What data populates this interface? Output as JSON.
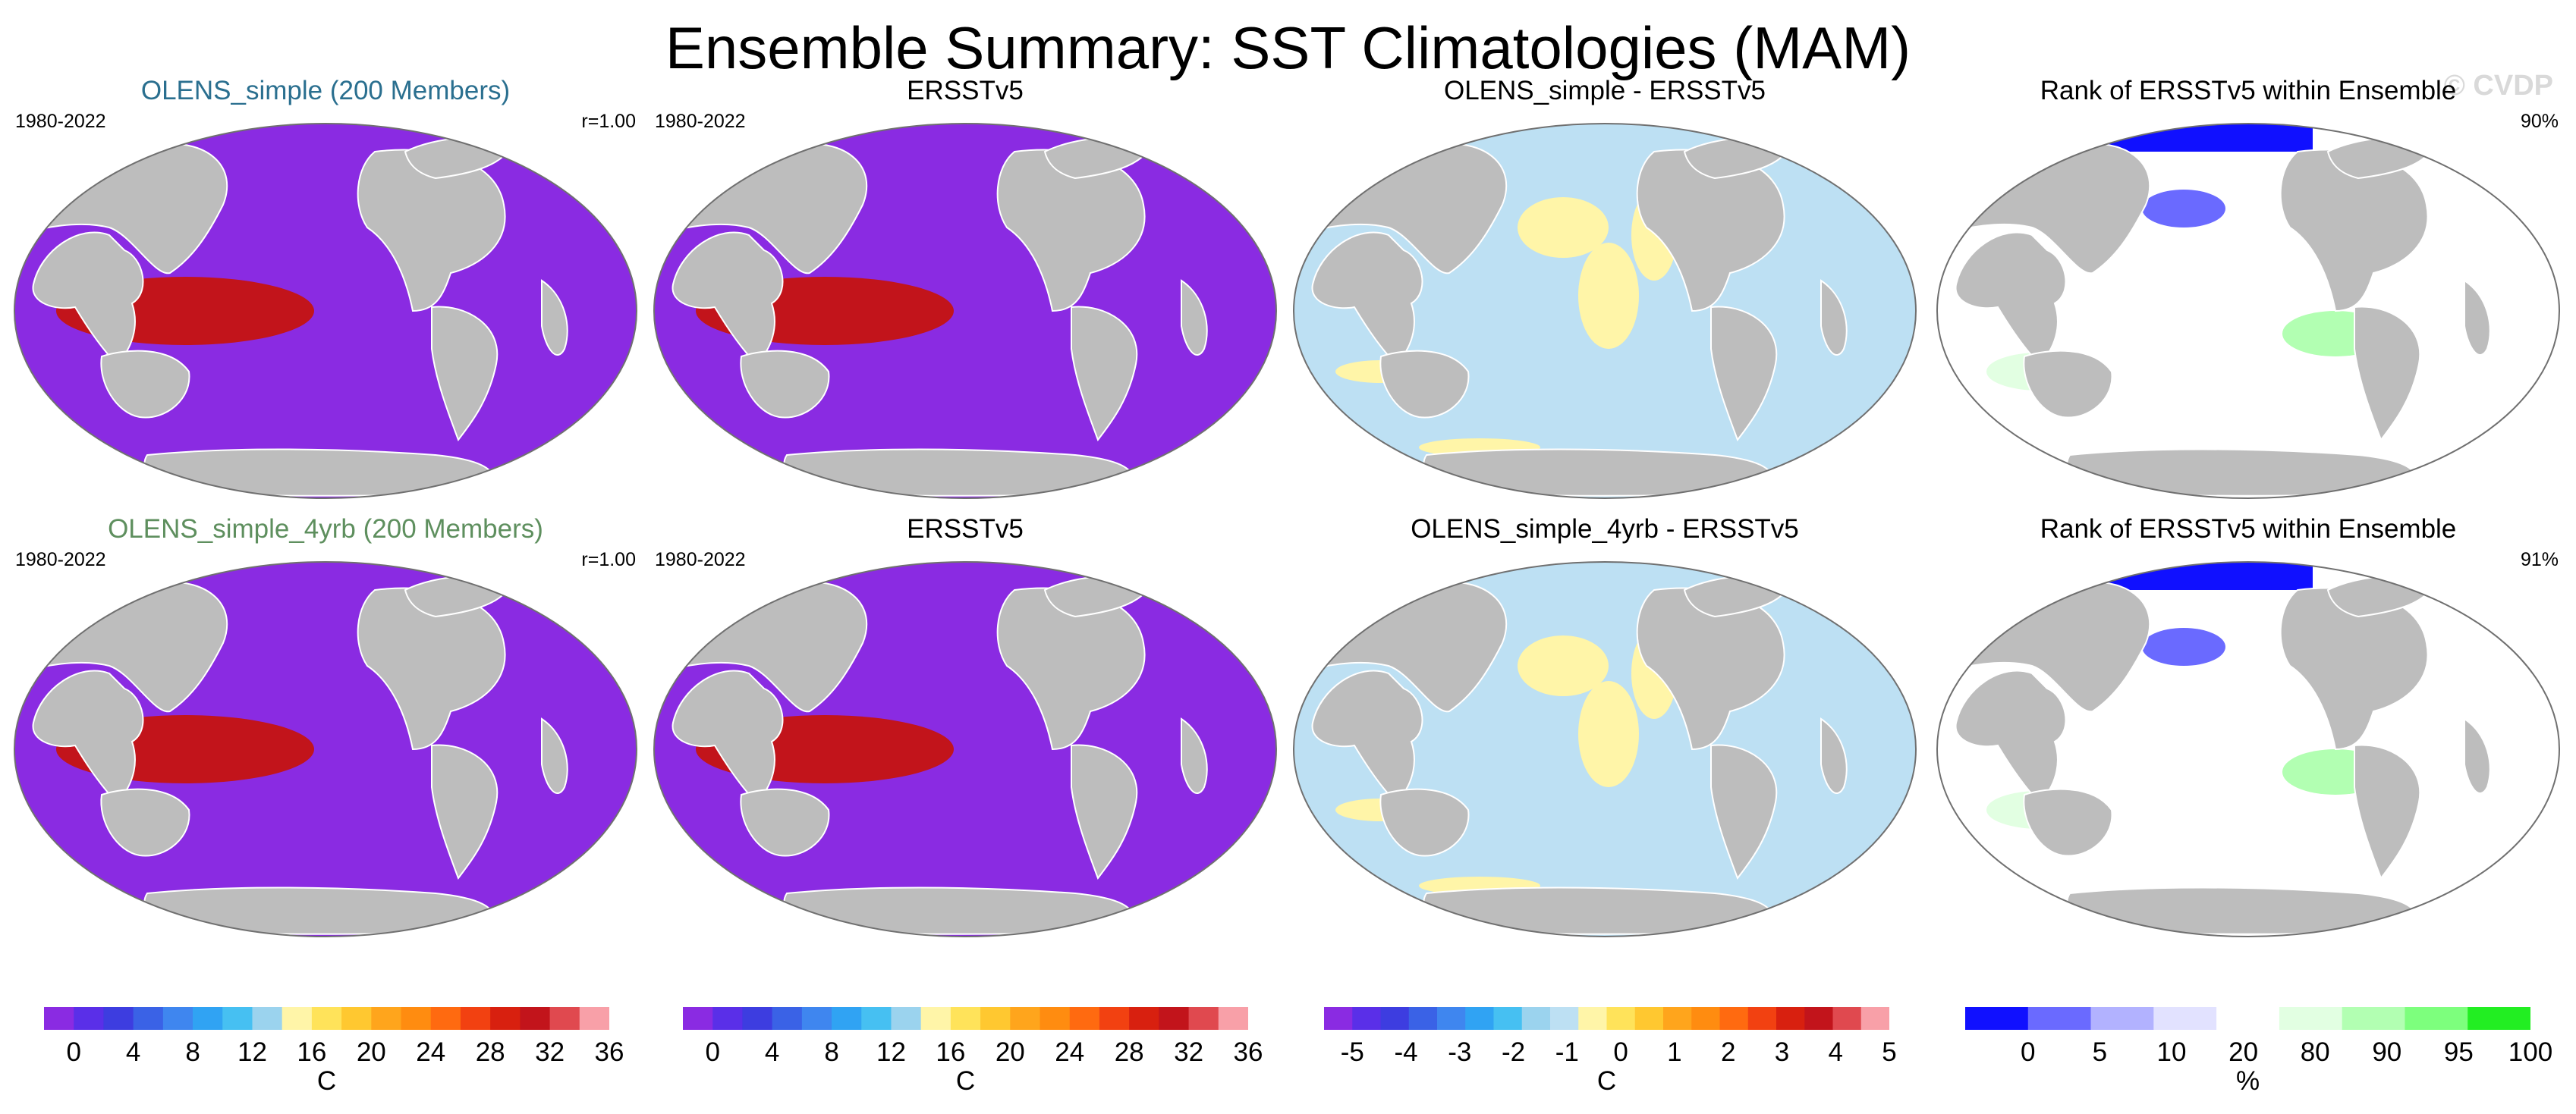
{
  "title": "Ensemble Summary: SST Climatologies (MAM)",
  "watermark": "© CVDP",
  "colors": {
    "land": "#bdbdbd",
    "ocean_outline": "#707070",
    "title_blue": "#2a6f8f",
    "title_green": "#5e8f5e"
  },
  "panels": [
    {
      "title": "OLENS_simple (200 Members)",
      "left": "1980-2022",
      "right": "r=1.00",
      "field": "sst",
      "title_color": "#2a6f8f"
    },
    {
      "title": "ERSSTv5",
      "left": "1980-2022",
      "right": "",
      "field": "sst",
      "title_color": "#000000"
    },
    {
      "title": "OLENS_simple - ERSSTv5",
      "left": "",
      "right": "",
      "field": "diff",
      "title_color": "#000000"
    },
    {
      "title": "Rank of ERSSTv5 within Ensemble",
      "left": "",
      "right": "90%",
      "field": "rank",
      "title_color": "#000000"
    },
    {
      "title": "OLENS_simple_4yrb (200 Members)",
      "left": "1980-2022",
      "right": "r=1.00",
      "field": "sst",
      "title_color": "#5e8f5e"
    },
    {
      "title": "ERSSTv5",
      "left": "1980-2022",
      "right": "",
      "field": "sst",
      "title_color": "#000000"
    },
    {
      "title": "OLENS_simple_4yrb - ERSSTv5",
      "left": "",
      "right": "",
      "field": "diff",
      "title_color": "#000000"
    },
    {
      "title": "Rank of ERSSTv5 within Ensemble",
      "left": "",
      "right": "91%",
      "field": "rank",
      "title_color": "#000000"
    }
  ],
  "colorbars": [
    {
      "unit": "C",
      "labels": [
        "0",
        "4",
        "8",
        "12",
        "16",
        "20",
        "24",
        "28",
        "32",
        "36"
      ],
      "colors": [
        "#8a2be2",
        "#5a2fe8",
        "#3d3de0",
        "#3a62e6",
        "#3f86ef",
        "#30a3f3",
        "#46c0f2",
        "#9bd3ee",
        "#fff5a8",
        "#ffe35a",
        "#ffc830",
        "#ffa51c",
        "#ff8c10",
        "#ff6a10",
        "#f24111",
        "#d8200f",
        "#c2141b",
        "#e0494f",
        "#f8a0a8"
      ]
    },
    {
      "unit": "C",
      "labels": [
        "0",
        "4",
        "8",
        "12",
        "16",
        "20",
        "24",
        "28",
        "32",
        "36"
      ],
      "colors": [
        "#8a2be2",
        "#5a2fe8",
        "#3d3de0",
        "#3a62e6",
        "#3f86ef",
        "#30a3f3",
        "#46c0f2",
        "#9bd3ee",
        "#fff5a8",
        "#ffe35a",
        "#ffc830",
        "#ffa51c",
        "#ff8c10",
        "#ff6a10",
        "#f24111",
        "#d8200f",
        "#c2141b",
        "#e0494f",
        "#f8a0a8"
      ]
    },
    {
      "unit": "C",
      "labels": [
        "-5",
        "-4",
        "-3",
        "-2",
        "-1",
        "0",
        "1",
        "2",
        "3",
        "4",
        "5"
      ],
      "colors": [
        "#8a2be2",
        "#5a2fe8",
        "#3d3de0",
        "#3a62e6",
        "#3f86ef",
        "#30a3f3",
        "#46c0f2",
        "#9bd3ee",
        "#bde0f3",
        "#fff5a8",
        "#ffe35a",
        "#ffc830",
        "#ffa51c",
        "#ff8c10",
        "#ff6a10",
        "#f24111",
        "#d8200f",
        "#c2141b",
        "#e0494f",
        "#f8a0a8"
      ]
    },
    {
      "unit": "%",
      "labels": [
        "0",
        "5",
        "10",
        "20",
        "80",
        "90",
        "95",
        "100"
      ],
      "colors": [
        "#1010ff",
        "#6a6aff",
        "#b2b2ff",
        "#e2e2ff",
        "#ffffff",
        "#e2ffe2",
        "#b2ffb2",
        "#7dff7d",
        "#22ee22"
      ]
    }
  ],
  "chart_data": {
    "type": "heatmap",
    "title": "Ensemble Summary: SST Climatologies (MAM)",
    "panels": [
      {
        "title": "OLENS_simple (200 Members)",
        "period": "1980-2022",
        "pattern_correlation": "r=1.00",
        "unit": "C",
        "levels": [
          0,
          36
        ]
      },
      {
        "title": "ERSSTv5",
        "period": "1980-2022",
        "unit": "C",
        "levels": [
          0,
          36
        ]
      },
      {
        "title": "OLENS_simple - ERSSTv5",
        "unit": "C",
        "levels": [
          -5,
          5
        ]
      },
      {
        "title": "Rank of ERSSTv5 within Ensemble",
        "summary": "90%",
        "unit": "%",
        "levels": [
          0,
          5,
          10,
          20,
          80,
          90,
          95,
          100
        ]
      },
      {
        "title": "OLENS_simple_4yrb (200 Members)",
        "period": "1980-2022",
        "pattern_correlation": "r=1.00",
        "unit": "C",
        "levels": [
          0,
          36
        ]
      },
      {
        "title": "ERSSTv5",
        "period": "1980-2022",
        "unit": "C",
        "levels": [
          0,
          36
        ]
      },
      {
        "title": "OLENS_simple_4yrb - ERSSTv5",
        "unit": "C",
        "levels": [
          -5,
          5
        ]
      },
      {
        "title": "Rank of ERSSTv5 within Ensemble",
        "summary": "91%",
        "unit": "%",
        "levels": [
          0,
          5,
          10,
          20,
          80,
          90,
          95,
          100
        ]
      }
    ],
    "colorbar_ticks": {
      "sst": [
        0,
        4,
        8,
        12,
        16,
        20,
        24,
        28,
        32,
        36
      ],
      "diff": [
        -5,
        -4,
        -3,
        -2,
        -1,
        0,
        1,
        2,
        3,
        4,
        5
      ],
      "rank": [
        0,
        5,
        10,
        20,
        80,
        90,
        95,
        100
      ]
    }
  }
}
